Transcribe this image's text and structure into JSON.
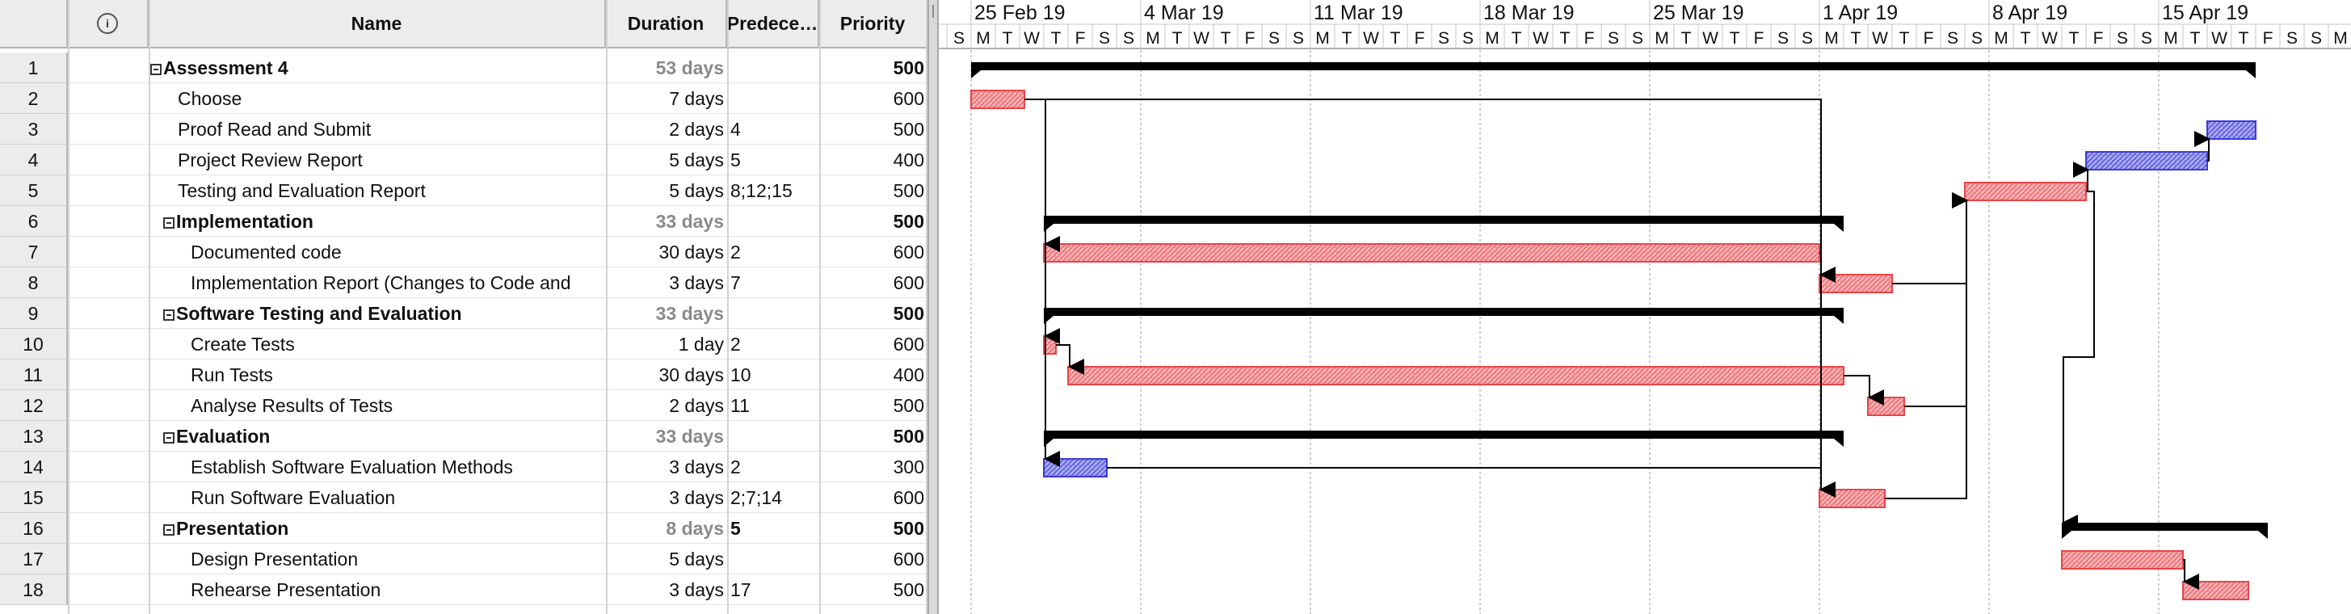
{
  "table": {
    "headers": {
      "name": "Name",
      "duration": "Duration",
      "predecessors": "Predece…",
      "priority": "Priority",
      "info_icon": "info-icon"
    },
    "rows": [
      {
        "num": "1",
        "name": "Assessment 4",
        "duration": "53 days",
        "pred": "",
        "priority": "500",
        "level": 0,
        "summary": true
      },
      {
        "num": "2",
        "name": "Choose",
        "duration": "7 days",
        "pred": "",
        "priority": "600",
        "level": 1,
        "summary": false
      },
      {
        "num": "3",
        "name": "Proof Read and Submit",
        "duration": "2 days",
        "pred": "4",
        "priority": "500",
        "level": 1,
        "summary": false
      },
      {
        "num": "4",
        "name": "Project Review Report",
        "duration": "5 days",
        "pred": "5",
        "priority": "400",
        "level": 1,
        "summary": false
      },
      {
        "num": "5",
        "name": "Testing and Evaluation Report",
        "duration": "5 days",
        "pred": "8;12;15",
        "priority": "500",
        "level": 1,
        "summary": false
      },
      {
        "num": "6",
        "name": "Implementation",
        "duration": "33 days",
        "pred": "",
        "priority": "500",
        "level": 1,
        "summary": true
      },
      {
        "num": "7",
        "name": "Documented code",
        "duration": "30 days",
        "pred": "2",
        "priority": "600",
        "level": 2,
        "summary": false
      },
      {
        "num": "8",
        "name": "Implementation Report (Changes to Code and",
        "duration": "3 days",
        "pred": "7",
        "priority": "600",
        "level": 2,
        "summary": false
      },
      {
        "num": "9",
        "name": "Software Testing and Evaluation",
        "duration": "33 days",
        "pred": "",
        "priority": "500",
        "level": 1,
        "summary": true
      },
      {
        "num": "10",
        "name": "Create Tests",
        "duration": "1 day",
        "pred": "2",
        "priority": "600",
        "level": 2,
        "summary": false
      },
      {
        "num": "11",
        "name": "Run Tests",
        "duration": "30 days",
        "pred": "10",
        "priority": "400",
        "level": 2,
        "summary": false
      },
      {
        "num": "12",
        "name": "Analyse Results of Tests",
        "duration": "2 days",
        "pred": "11",
        "priority": "500",
        "level": 2,
        "summary": false
      },
      {
        "num": "13",
        "name": "Evaluation",
        "duration": "33 days",
        "pred": "",
        "priority": "500",
        "level": 1,
        "summary": true
      },
      {
        "num": "14",
        "name": "Establish Software Evaluation Methods",
        "duration": "3 days",
        "pred": "2",
        "priority": "300",
        "level": 2,
        "summary": false
      },
      {
        "num": "15",
        "name": "Run Software Evaluation",
        "duration": "3 days",
        "pred": "2;7;14",
        "priority": "600",
        "level": 2,
        "summary": false
      },
      {
        "num": "16",
        "name": "Presentation",
        "duration": "8 days",
        "pred": "5",
        "priority": "500",
        "level": 1,
        "summary": true
      },
      {
        "num": "17",
        "name": "Design Presentation",
        "duration": "5 days",
        "pred": "",
        "priority": "600",
        "level": 2,
        "summary": false
      },
      {
        "num": "18",
        "name": "Rehearse Presentation",
        "duration": "3 days",
        "pred": "17",
        "priority": "500",
        "level": 2,
        "summary": false
      }
    ]
  },
  "timeline": {
    "weeks": [
      "25 Feb 19",
      "4 Mar 19",
      "11 Mar 19",
      "18 Mar 19",
      "25 Mar 19",
      "1 Apr 19",
      "8 Apr 19",
      "15 Apr 19"
    ],
    "first_day_letter": "S",
    "day_letters": [
      "M",
      "T",
      "W",
      "T",
      "F",
      "S",
      "S"
    ],
    "last_day_letter": "M",
    "colors": {
      "critical": "#e8444a",
      "normal": "#3b3bd6",
      "summary": "#000000",
      "dependency": "#000000"
    },
    "tasks": [
      {
        "row": 1,
        "kind": "summary",
        "start": 0,
        "days": 53
      },
      {
        "row": 2,
        "kind": "critical",
        "start": 0,
        "days": 2.2
      },
      {
        "row": 3,
        "kind": "normal",
        "start": 51,
        "days": 2
      },
      {
        "row": 4,
        "kind": "normal",
        "start": 46,
        "days": 5
      },
      {
        "row": 5,
        "kind": "critical",
        "start": 41,
        "days": 5
      },
      {
        "row": 6,
        "kind": "summary",
        "start": 3,
        "days": 33
      },
      {
        "row": 7,
        "kind": "critical",
        "start": 3,
        "days": 32
      },
      {
        "row": 8,
        "kind": "critical",
        "start": 35,
        "days": 3
      },
      {
        "row": 9,
        "kind": "summary",
        "start": 3,
        "days": 33
      },
      {
        "row": 10,
        "kind": "critical",
        "start": 3,
        "days": 0.5
      },
      {
        "row": 11,
        "kind": "critical",
        "start": 4,
        "days": 32
      },
      {
        "row": 12,
        "kind": "critical",
        "start": 37,
        "days": 1.5
      },
      {
        "row": 13,
        "kind": "summary",
        "start": 3,
        "days": 33
      },
      {
        "row": 14,
        "kind": "normal",
        "start": 3,
        "days": 2.6
      },
      {
        "row": 15,
        "kind": "critical",
        "start": 35,
        "days": 2.7
      },
      {
        "row": 16,
        "kind": "summary",
        "start": 45,
        "days": 8.5
      },
      {
        "row": 17,
        "kind": "critical",
        "start": 45,
        "days": 5
      },
      {
        "row": 18,
        "kind": "critical",
        "start": 50,
        "days": 2.7
      }
    ],
    "links": [
      {
        "from": 2,
        "to": 7
      },
      {
        "from": 2,
        "to": 10
      },
      {
        "from": 2,
        "to": 14
      },
      {
        "from": 2,
        "to": 15
      },
      {
        "from": 7,
        "to": 8
      },
      {
        "from": 10,
        "to": 11
      },
      {
        "from": 11,
        "to": 12
      },
      {
        "from": 14,
        "to": 15
      },
      {
        "from": 8,
        "to": 5
      },
      {
        "from": 12,
        "to": 5
      },
      {
        "from": 15,
        "to": 5
      },
      {
        "from": 5,
        "to": 4
      },
      {
        "from": 4,
        "to": 3
      },
      {
        "from": 5,
        "to": 16
      },
      {
        "from": 17,
        "to": 18
      }
    ]
  }
}
